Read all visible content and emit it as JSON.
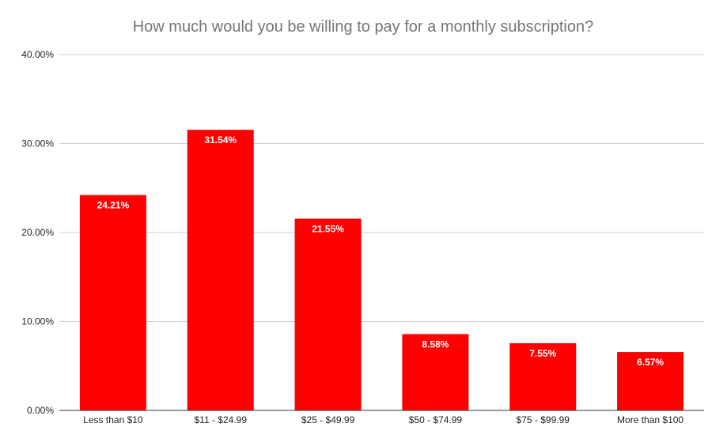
{
  "chart_data": {
    "type": "bar",
    "title": "How much would you be willing to pay for a monthly subscription?",
    "categories": [
      "Less than $10",
      "$11 - $24.99",
      "$25 - $49.99",
      "$50 - $74.99",
      "$75 - $99.99",
      "More than $100"
    ],
    "values": [
      24.21,
      31.54,
      21.55,
      8.58,
      7.55,
      6.57
    ],
    "value_labels": [
      "24.21%",
      "31.54%",
      "21.55%",
      "8.58%",
      "7.55%",
      "6.57%"
    ],
    "ylim": [
      0,
      40
    ],
    "y_ticks": [
      0,
      10,
      20,
      30,
      40
    ],
    "y_tick_labels": [
      "0.00%",
      "10.00%",
      "20.00%",
      "30.00%",
      "40.00%"
    ],
    "xlabel": "",
    "ylabel": "",
    "grid": true,
    "legend": "none",
    "colors": {
      "bar": "#ff0000",
      "grid": "#cccccc",
      "axis": "#333333",
      "title": "#757575",
      "data_label": "#ffffff"
    }
  }
}
